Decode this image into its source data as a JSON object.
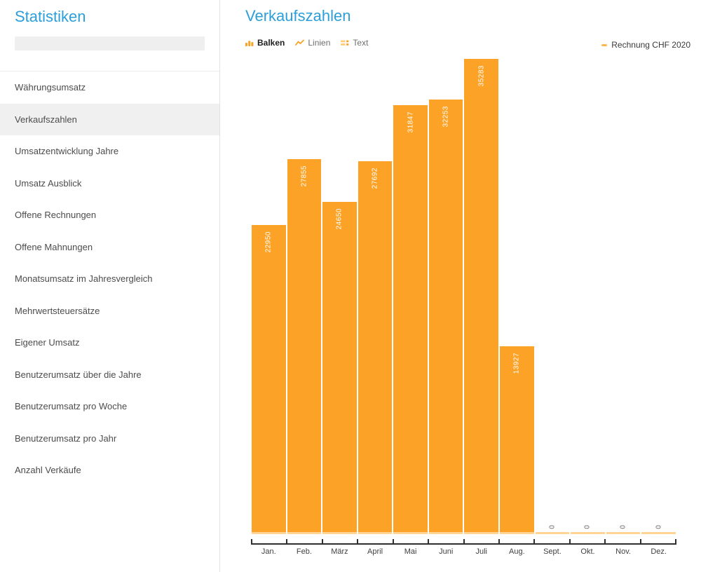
{
  "sidebar": {
    "title": "Statistiken",
    "search": {
      "value": "",
      "placeholder": ""
    },
    "items": [
      {
        "label": "Währungsumsatz",
        "active": false
      },
      {
        "label": "Verkaufszahlen",
        "active": true
      },
      {
        "label": "Umsatzentwicklung Jahre",
        "active": false
      },
      {
        "label": "Umsatz Ausblick",
        "active": false
      },
      {
        "label": "Offene Rechnungen",
        "active": false
      },
      {
        "label": "Offene Mahnungen",
        "active": false
      },
      {
        "label": "Monatsumsatz im Jahresvergleich",
        "active": false
      },
      {
        "label": "Mehrwertsteuersätze",
        "active": false
      },
      {
        "label": "Eigener Umsatz",
        "active": false
      },
      {
        "label": "Benutzerumsatz über die Jahre",
        "active": false
      },
      {
        "label": "Benutzerumsatz pro Woche",
        "active": false
      },
      {
        "label": "Benutzerumsatz pro Jahr",
        "active": false
      },
      {
        "label": "Anzahl Verkäufe",
        "active": false
      }
    ]
  },
  "main": {
    "title": "Verkaufszahlen",
    "tabs": [
      {
        "label": "Balken",
        "icon": "bar-chart-icon",
        "active": true
      },
      {
        "label": "Linien",
        "icon": "line-chart-icon",
        "active": false
      },
      {
        "label": "Text",
        "icon": "table-icon",
        "active": false
      }
    ],
    "legend": {
      "label": "Rechnung CHF 2020",
      "color": "#ffb74d"
    }
  },
  "chart_data": {
    "type": "bar",
    "title": "Verkaufszahlen",
    "series": [
      {
        "name": "Rechnung CHF 2020",
        "values": [
          22950,
          27855,
          24650,
          27692,
          31847,
          32253,
          35283,
          13927,
          0,
          0,
          0,
          0
        ]
      }
    ],
    "categories": [
      "Jan.",
      "Feb.",
      "März",
      "April",
      "Mai",
      "Juni",
      "Juli",
      "Aug.",
      "Sept.",
      "Okt.",
      "Nov.",
      "Dez."
    ],
    "values": [
      22950,
      27855,
      24650,
      27692,
      31847,
      32253,
      35283,
      13927,
      0,
      0,
      0,
      0
    ],
    "xlabel": "",
    "ylabel": "",
    "ylim": [
      0,
      35283
    ],
    "ymax": 35283,
    "grid": false,
    "legend_position": "top-right",
    "bar_color": "#fca327",
    "zero_line_color": "#ffd494",
    "value_label_color_inside": "#ffffff",
    "value_label_color_zero": "#666666"
  },
  "colors": {
    "accent_blue": "#2c9fd9",
    "bar_orange": "#fca327",
    "light_orange": "#ffd494",
    "selected_item_bg": "#f0f0f0",
    "axis_line": "#2f2f2f"
  }
}
